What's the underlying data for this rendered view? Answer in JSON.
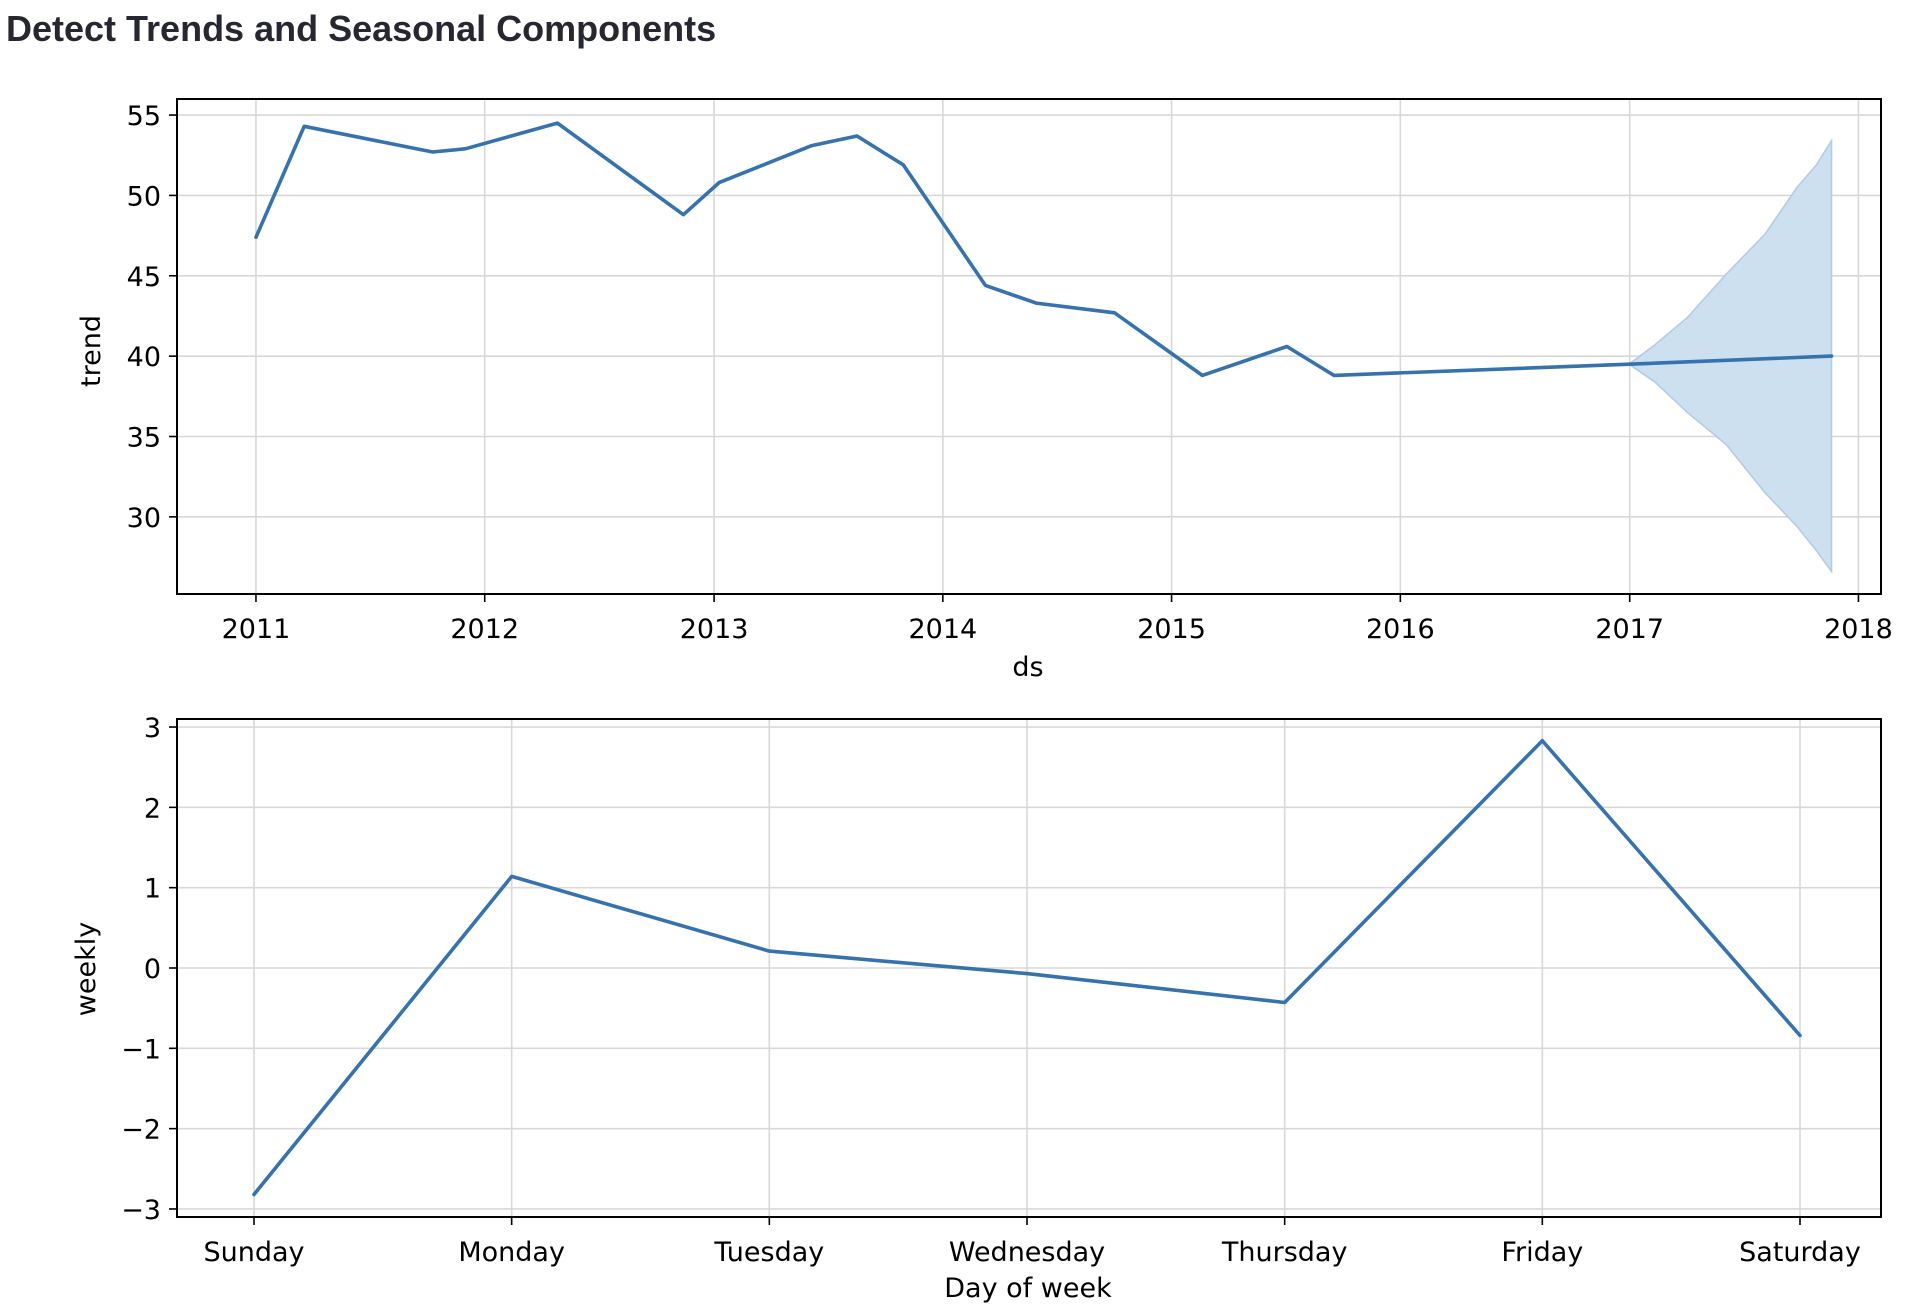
{
  "page": {
    "title": "Detect Trends and Seasonal Components"
  },
  "chart_data": [
    {
      "type": "line",
      "xlabel": "ds",
      "ylabel": "trend",
      "x_scale": "date",
      "xlim": [
        "2010-08-28",
        "2018-02-06"
      ],
      "ylim": [
        25.2,
        56.0
      ],
      "xticks": [
        "2011",
        "2012",
        "2013",
        "2014",
        "2015",
        "2016",
        "2017",
        "2018"
      ],
      "yticks": [
        30,
        35,
        40,
        45,
        50,
        55
      ],
      "grid": true,
      "line_color": "#3672ad",
      "band_color": "#cde0ef",
      "band_edge_color": "#b3cde5",
      "series": [
        {
          "x": [
            "2011-01-01",
            "2011-03-19",
            "2011-10-10",
            "2011-12-01",
            "2012-04-26",
            "2012-11-13",
            "2013-01-09",
            "2013-06-06",
            "2013-08-17",
            "2013-10-30",
            "2014-03-10",
            "2014-05-30",
            "2014-10-02",
            "2015-02-19",
            "2015-07-04",
            "2015-09-17",
            "2016-12-31",
            "2017-11-19"
          ],
          "y": [
            47.4,
            54.3,
            52.7,
            52.9,
            54.5,
            48.8,
            50.8,
            53.1,
            53.7,
            51.9,
            44.4,
            43.3,
            42.7,
            38.8,
            40.6,
            38.8,
            39.5,
            40.0
          ]
        }
      ],
      "uncertainty": {
        "x": [
          "2016-12-31",
          "2017-02-10",
          "2017-04-03",
          "2017-06-04",
          "2017-08-05",
          "2017-09-25",
          "2017-10-26",
          "2017-11-19"
        ],
        "lower": [
          39.5,
          38.4,
          36.5,
          34.5,
          31.5,
          29.4,
          27.9,
          26.6
        ],
        "upper": [
          39.5,
          40.7,
          42.4,
          45.1,
          47.6,
          50.5,
          51.9,
          53.4
        ]
      }
    },
    {
      "type": "line",
      "xlabel": "Day of week",
      "ylabel": "weekly",
      "categories": [
        "Sunday",
        "Monday",
        "Tuesday",
        "Wednesday",
        "Thursday",
        "Friday",
        "Saturday"
      ],
      "ylim": [
        -3.1,
        3.1
      ],
      "yticks": [
        -3,
        -2,
        -1,
        0,
        1,
        2,
        3
      ],
      "ytick_labels": [
        "−3",
        "−2",
        "−1",
        "0",
        "1",
        "2",
        "3"
      ],
      "grid": true,
      "line_color": "#3672ad",
      "series": [
        {
          "values": [
            -2.82,
            1.14,
            0.21,
            -0.07,
            -0.43,
            2.83,
            -0.84
          ]
        }
      ]
    }
  ]
}
